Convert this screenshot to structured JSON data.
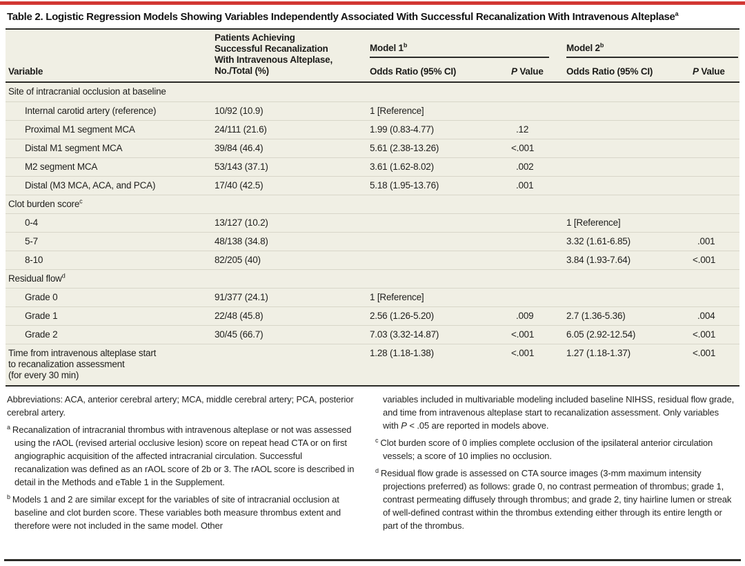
{
  "colors": {
    "accent_red": "#d23733",
    "table_background": "#f0efe4",
    "rule_dark": "#2a2a27"
  },
  "title": {
    "text": "Table 2. Logistic Regression Models Showing Variables Independently Associated With Successful Recanalization With Intravenous Alteplase",
    "sup": "a"
  },
  "columns": {
    "variable": "Variable",
    "patients": "Patients Achieving\nSuccessful Recanalization\nWith Intravenous Alteplase,\nNo./Total (%)",
    "model1": {
      "label": "Model 1",
      "sup": "b",
      "or": "Odds Ratio (95% CI)",
      "p_italic": "P",
      "p_rest": " Value"
    },
    "model2": {
      "label": "Model 2",
      "sup": "b",
      "or": "Odds Ratio (95% CI)",
      "p_italic": "P",
      "p_rest": " Value"
    }
  },
  "rows": [
    {
      "type": "section",
      "variable": "Site of intracranial occlusion at baseline",
      "sup": "",
      "patients": "",
      "m1_or": "",
      "m1_p": "",
      "m2_or": "",
      "m2_p": ""
    },
    {
      "type": "data",
      "variable": "Internal carotid artery (reference)",
      "sup": "",
      "patients": "10/92 (10.9)",
      "m1_or": "1 [Reference]",
      "m1_p": "",
      "m2_or": "",
      "m2_p": ""
    },
    {
      "type": "data",
      "variable": "Proximal M1 segment MCA",
      "sup": "",
      "patients": "24/111 (21.6)",
      "m1_or": "1.99 (0.83-4.77)",
      "m1_p": ".12",
      "m2_or": "",
      "m2_p": ""
    },
    {
      "type": "data",
      "variable": "Distal M1 segment MCA",
      "sup": "",
      "patients": "39/84 (46.4)",
      "m1_or": "5.61 (2.38-13.26)",
      "m1_p": "<.001",
      "m2_or": "",
      "m2_p": ""
    },
    {
      "type": "data",
      "variable": "M2 segment MCA",
      "sup": "",
      "patients": "53/143 (37.1)",
      "m1_or": "3.61 (1.62-8.02)",
      "m1_p": ".002",
      "m2_or": "",
      "m2_p": ""
    },
    {
      "type": "data",
      "variable": "Distal (M3 MCA, ACA, and PCA)",
      "sup": "",
      "patients": "17/40 (42.5)",
      "m1_or": "5.18 (1.95-13.76)",
      "m1_p": ".001",
      "m2_or": "",
      "m2_p": ""
    },
    {
      "type": "section",
      "variable": "Clot burden score",
      "sup": "c",
      "patients": "",
      "m1_or": "",
      "m1_p": "",
      "m2_or": "",
      "m2_p": ""
    },
    {
      "type": "data",
      "variable": "0-4",
      "sup": "",
      "patients": "13/127 (10.2)",
      "m1_or": "",
      "m1_p": "",
      "m2_or": "1 [Reference]",
      "m2_p": ""
    },
    {
      "type": "data",
      "variable": "5-7",
      "sup": "",
      "patients": "48/138 (34.8)",
      "m1_or": "",
      "m1_p": "",
      "m2_or": "3.32 (1.61-6.85)",
      "m2_p": ".001"
    },
    {
      "type": "data",
      "variable": "8-10",
      "sup": "",
      "patients": "82/205 (40)",
      "m1_or": "",
      "m1_p": "",
      "m2_or": "3.84 (1.93-7.64)",
      "m2_p": "<.001"
    },
    {
      "type": "section",
      "variable": "Residual flow",
      "sup": "d",
      "patients": "",
      "m1_or": "",
      "m1_p": "",
      "m2_or": "",
      "m2_p": ""
    },
    {
      "type": "data",
      "variable": "Grade 0",
      "sup": "",
      "patients": "91/377 (24.1)",
      "m1_or": "1 [Reference]",
      "m1_p": "",
      "m2_or": "",
      "m2_p": ""
    },
    {
      "type": "data",
      "variable": "Grade 1",
      "sup": "",
      "patients": "22/48 (45.8)",
      "m1_or": "2.56 (1.26-5.20)",
      "m1_p": ".009",
      "m2_or": "2.7 (1.36-5.36)",
      "m2_p": ".004"
    },
    {
      "type": "data",
      "variable": "Grade 2",
      "sup": "",
      "patients": "30/45 (66.7)",
      "m1_or": "7.03 (3.32-14.87)",
      "m1_p": "<.001",
      "m2_or": "6.05 (2.92-12.54)",
      "m2_p": "<.001"
    },
    {
      "type": "total",
      "variable": "Time from intravenous alteplase start\nto recanalization assessment\n(for every 30 min)",
      "sup": "",
      "patients": "",
      "m1_or": "1.28 (1.18-1.38)",
      "m1_p": "<.001",
      "m2_or": "1.27 (1.18-1.37)",
      "m2_p": "<.001"
    }
  ],
  "footnotes": {
    "abbreviations": "Abbreviations: ACA, anterior cerebral artery; MCA, middle cerebral artery; PCA, posterior cerebral artery.",
    "a": {
      "marker": "a",
      "text": "Recanalization of intracranial thrombus with intravenous alteplase or not was assessed using the rAOL (revised arterial occlusive lesion) score on repeat head CTA or on first angiographic acquisition of the affected intracranial circulation. Successful recanalization was defined as an rAOL score of 2b or 3. The rAOL score is described in detail in the Methods and eTable 1 in the Supplement."
    },
    "b": {
      "marker": "b",
      "text": "Models 1 and 2 are similar except for the variables of site of intracranial occlusion at baseline and clot burden score. These variables both measure thrombus extent and therefore were not included in the same model. Other"
    },
    "b_cont": {
      "t1": "variables included in multivariable modeling included baseline NIHSS, residual flow grade, and time from intravenous alteplase start to recanalization assessment. Only variables with ",
      "i": "P",
      "t2": " < .05 are reported in models above."
    },
    "c": {
      "marker": "c",
      "text": "Clot burden score of 0 implies complete occlusion of the ipsilateral anterior circulation vessels; a score of 10 implies no occlusion."
    },
    "d": {
      "marker": "d",
      "text": "Residual flow grade is assessed on CTA source images (3-mm maximum intensity projections preferred) as follows: grade 0, no contrast permeation of thrombus; grade 1, contrast permeating diffusely through thrombus; and grade 2, tiny hairline lumen or streak of well-defined contrast within the thrombus extending either through its entire length or part of the thrombus."
    }
  }
}
